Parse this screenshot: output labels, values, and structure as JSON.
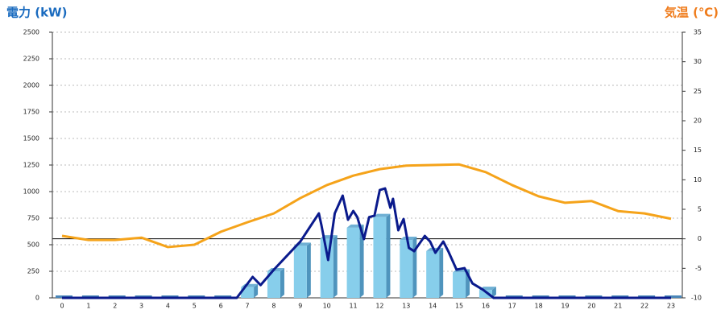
{
  "chart_data": {
    "type": "combo",
    "y_title": "電力 (kW)",
    "y2_title": "気温 (℃)",
    "categories": [
      "0",
      "1",
      "2",
      "3",
      "4",
      "5",
      "6",
      "7",
      "8",
      "9",
      "10",
      "11",
      "12",
      "13",
      "14",
      "15",
      "16",
      "17",
      "18",
      "19",
      "20",
      "21",
      "22",
      "23"
    ],
    "ylim": [
      0,
      2500
    ],
    "yticks": [
      0,
      250,
      500,
      750,
      1000,
      1250,
      1500,
      1750,
      2000,
      2250,
      2500
    ],
    "y2lim": [
      -10,
      35
    ],
    "y2ticks": [
      -10,
      -5,
      0,
      5,
      10,
      15,
      20,
      25,
      30,
      35
    ],
    "grid": true,
    "series": [
      {
        "type": "bar",
        "color": "#87ceeb",
        "values": [
          0,
          0,
          0,
          0,
          0,
          0,
          0,
          100,
          250,
          490,
          560,
          660,
          760,
          545,
          440,
          240,
          75,
          0,
          0,
          0,
          0,
          0,
          0,
          0
        ]
      },
      {
        "type": "line",
        "axis": "y2",
        "color": "#f5a31a",
        "values": [
          0.5,
          -0.2,
          -0.2,
          0.2,
          -1.4,
          -1,
          1.2,
          2.8,
          4.3,
          6.9,
          9.1,
          10.7,
          11.8,
          12.4,
          12.5,
          12.6,
          11.3,
          9.1,
          7.2,
          6.1,
          6.4,
          4.7,
          4.3,
          3.4
        ]
      },
      {
        "type": "line",
        "color": "#0a1a8c",
        "x": [
          0,
          6.6,
          7.2,
          7.5,
          8,
          9,
          9.7,
          9.8,
          10.05,
          10.3,
          10.6,
          10.8,
          11,
          11.15,
          11.4,
          11.6,
          11.8,
          12,
          12.2,
          12.4,
          12.5,
          12.7,
          12.9,
          13.1,
          13.3,
          13.7,
          13.9,
          14.1,
          14.4,
          14.6,
          14.9,
          15.2,
          15.5,
          15.9,
          16.3,
          23
        ],
        "values": [
          0,
          0,
          197,
          120,
          265,
          530,
          795,
          680,
          356,
          795,
          962,
          735,
          818,
          760,
          553,
          760,
          773,
          1015,
          1030,
          848,
          932,
          636,
          742,
          470,
          439,
          583,
          530,
          424,
          530,
          432,
          265,
          280,
          136,
          76,
          0,
          0
        ]
      }
    ]
  }
}
